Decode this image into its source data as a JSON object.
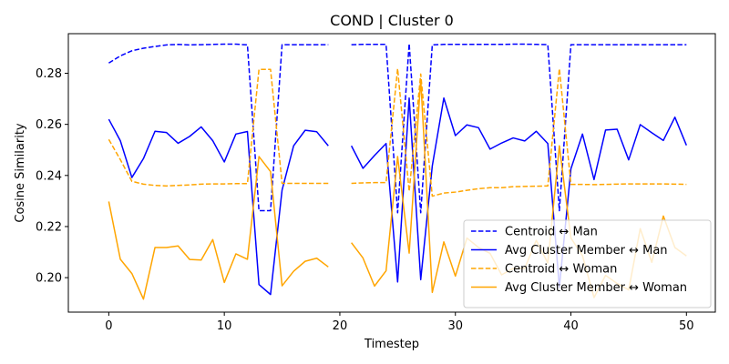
{
  "chart_data": {
    "type": "line",
    "title": "COND | Cluster 0",
    "xlabel": "Timestep",
    "ylabel": "Cosine Similarity",
    "xlim": [
      -3.5,
      52.5
    ],
    "ylim": [
      0.1865,
      0.2955
    ],
    "xticks": [
      0,
      10,
      20,
      30,
      40,
      50
    ],
    "xtick_labels": [
      "0",
      "10",
      "20",
      "30",
      "40",
      "50"
    ],
    "yticks": [
      0.2,
      0.22,
      0.24,
      0.26,
      0.28
    ],
    "ytick_labels": [
      "0.20",
      "0.22",
      "0.24",
      "0.26",
      "0.28"
    ],
    "grid": false,
    "legend_position": "lower-right",
    "x": [
      0,
      1,
      2,
      3,
      4,
      5,
      6,
      7,
      8,
      9,
      10,
      11,
      12,
      13,
      14,
      15,
      16,
      17,
      18,
      19,
      20,
      21,
      22,
      23,
      24,
      25,
      26,
      27,
      28,
      29,
      30,
      31,
      32,
      33,
      34,
      35,
      36,
      37,
      38,
      39,
      40,
      41,
      42,
      43,
      44,
      45,
      46,
      47,
      48,
      49,
      50
    ],
    "series": [
      {
        "name": "Centroid ↔ Man",
        "color": "#0000ff",
        "dash": "dashed",
        "values": [
          0.284,
          0.2868,
          0.2888,
          0.2898,
          0.2905,
          0.2911,
          0.2913,
          0.2911,
          0.2912,
          0.2913,
          0.2914,
          0.2914,
          0.2911,
          0.2262,
          0.2262,
          0.2912,
          0.2912,
          0.2912,
          0.2912,
          0.2912,
          null,
          0.2912,
          0.2913,
          0.2913,
          0.2913,
          0.2254,
          0.2916,
          0.2254,
          0.2911,
          0.2913,
          0.2913,
          0.2913,
          0.2913,
          0.2913,
          0.2913,
          0.2914,
          0.2914,
          0.2913,
          0.2912,
          0.2262,
          0.2912,
          0.2912,
          0.2912,
          0.2912,
          0.2912,
          0.2912,
          0.2912,
          0.2912,
          0.2912,
          0.2912,
          0.2912
        ]
      },
      {
        "name": "Avg Cluster Member ↔ Man",
        "color": "#0000ff",
        "dash": "solid",
        "values": [
          0.262,
          0.2536,
          0.2392,
          0.2466,
          0.2573,
          0.2568,
          0.2526,
          0.2553,
          0.259,
          0.2536,
          0.2453,
          0.2562,
          0.2572,
          0.1973,
          0.1934,
          0.2343,
          0.2516,
          0.2577,
          0.2571,
          0.2516,
          null,
          0.2516,
          0.2428,
          0.2478,
          0.2525,
          0.1983,
          0.2703,
          0.1992,
          0.2437,
          0.2703,
          0.2556,
          0.2598,
          0.2587,
          0.2503,
          0.2527,
          0.2547,
          0.2535,
          0.2573,
          0.2525,
          0.1962,
          0.2426,
          0.2562,
          0.2384,
          0.2578,
          0.2581,
          0.2461,
          0.2599,
          0.2567,
          0.2537,
          0.2628,
          0.2518
        ]
      },
      {
        "name": "Centroid ↔ Woman",
        "color": "#ffa500",
        "dash": "dashed",
        "values": [
          0.2541,
          0.2462,
          0.2377,
          0.2366,
          0.2361,
          0.2359,
          0.2361,
          0.2363,
          0.2366,
          0.2367,
          0.2367,
          0.2368,
          0.2368,
          0.2815,
          0.2815,
          0.2369,
          0.2369,
          0.2369,
          0.2369,
          0.2369,
          null,
          0.2369,
          0.2371,
          0.2372,
          0.2372,
          0.2818,
          0.2338,
          0.2797,
          0.2319,
          0.2331,
          0.2335,
          0.2342,
          0.2348,
          0.2352,
          0.2352,
          0.2356,
          0.2357,
          0.2358,
          0.2359,
          0.2818,
          0.2365,
          0.2365,
          0.2364,
          0.2365,
          0.2366,
          0.2367,
          0.2367,
          0.2367,
          0.2367,
          0.2366,
          0.2365
        ]
      },
      {
        "name": "Avg Cluster Member ↔ Woman",
        "color": "#ffa500",
        "dash": "solid",
        "values": [
          0.2298,
          0.2072,
          0.2016,
          0.1916,
          0.2118,
          0.2118,
          0.2124,
          0.2071,
          0.2069,
          0.2149,
          0.1981,
          0.2093,
          0.2072,
          0.2474,
          0.2415,
          0.1968,
          0.2025,
          0.2064,
          0.2076,
          0.2042,
          null,
          0.2137,
          0.2077,
          0.1967,
          0.2027,
          0.2474,
          0.2096,
          0.2776,
          0.1942,
          0.214,
          0.2006,
          0.2155,
          0.2118,
          0.2095,
          0.2011,
          0.2036,
          0.2036,
          0.2146,
          0.2057,
          0.2516,
          0.2155,
          0.2086,
          0.1922,
          0.2009,
          0.1977,
          0.1952,
          0.2192,
          0.206,
          0.2241,
          0.2118,
          0.2085
        ]
      }
    ]
  }
}
